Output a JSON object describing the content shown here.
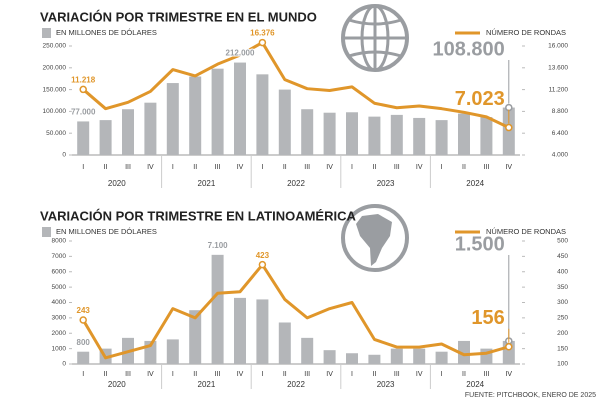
{
  "chart_data": [
    {
      "type": "combo",
      "title": "VARIACIÓN POR TRIMESTRE EN EL MUNDO",
      "categories": [
        "I",
        "II",
        "III",
        "IV",
        "I",
        "II",
        "III",
        "IV",
        "I",
        "II",
        "III",
        "IV",
        "I",
        "II",
        "III",
        "IV",
        "I",
        "II",
        "III",
        "IV"
      ],
      "years": [
        "2020",
        "2021",
        "2022",
        "2023",
        "2024"
      ],
      "series": [
        {
          "name": "EN MILLONES DE DÓLARES",
          "type": "bar",
          "color": "#b4b6b9",
          "values": [
            77000,
            80000,
            105000,
            120000,
            165000,
            180000,
            198000,
            212000,
            185000,
            150000,
            105000,
            97000,
            98000,
            88000,
            92000,
            85000,
            80000,
            95000,
            87000,
            108800
          ],
          "value_labels": [
            "77.000",
            null,
            null,
            null,
            null,
            null,
            null,
            "212.000",
            null,
            null,
            null,
            null,
            null,
            null,
            null,
            null,
            null,
            null,
            null,
            "108.800"
          ]
        },
        {
          "name": "NÚMERO DE RONDAS",
          "type": "line",
          "axis": "y2",
          "color": "#e0962a",
          "values": [
            11218,
            9100,
            9800,
            11000,
            13400,
            12700,
            14000,
            15000,
            16376,
            12300,
            11300,
            11100,
            11500,
            9700,
            9200,
            9400,
            9100,
            8700,
            8200,
            7023
          ],
          "value_labels": [
            "11.218",
            null,
            null,
            null,
            null,
            null,
            null,
            null,
            "16.376",
            null,
            null,
            null,
            null,
            null,
            null,
            null,
            null,
            null,
            null,
            "7.023"
          ]
        }
      ],
      "ylim": [
        0,
        250000
      ],
      "yticks": [
        0,
        {
          "value": 50000,
          "label": "50.000"
        },
        {
          "value": 100000,
          "label": "100.000"
        },
        {
          "value": 150000,
          "label": "150.000"
        },
        {
          "value": 200000,
          "label": "200.000"
        },
        {
          "value": 250000,
          "label": "250.000"
        }
      ],
      "y2lim": [
        4000,
        16000
      ],
      "y2ticks": [
        {
          "value": 4000,
          "label": "4.000"
        },
        {
          "value": 6400,
          "label": "6.400"
        },
        {
          "value": 8800,
          "label": "8.800"
        },
        {
          "value": 11200,
          "label": "11.200"
        },
        {
          "value": 13600,
          "label": "13.600"
        },
        {
          "value": 16000,
          "label": "16.000"
        }
      ]
    },
    {
      "type": "combo",
      "title": "VARIACIÓN POR TRIMESTRE EN LATINOAMÉRICA",
      "categories": [
        "I",
        "II",
        "III",
        "IV",
        "I",
        "II",
        "III",
        "IV",
        "I",
        "II",
        "III",
        "IV",
        "I",
        "II",
        "III",
        "IV",
        "I",
        "II",
        "III",
        "IV"
      ],
      "years": [
        "2020",
        "2021",
        "2022",
        "2023",
        "2024"
      ],
      "series": [
        {
          "name": "EN MILLONES DE DÓLARES",
          "type": "bar",
          "color": "#b4b6b9",
          "values": [
            800,
            1000,
            1700,
            1500,
            1600,
            3500,
            7100,
            4300,
            4200,
            2700,
            1700,
            900,
            700,
            600,
            1000,
            1000,
            800,
            1500,
            1000,
            1500
          ],
          "value_labels": [
            "800",
            null,
            null,
            null,
            null,
            null,
            "7.100",
            null,
            null,
            null,
            null,
            null,
            null,
            null,
            null,
            null,
            null,
            null,
            null,
            "1.500"
          ]
        },
        {
          "name": "NÚMERO DE RONDAS",
          "type": "line",
          "axis": "y2",
          "color": "#e0962a",
          "values": [
            243,
            120,
            140,
            160,
            280,
            250,
            330,
            335,
            423,
            310,
            250,
            280,
            300,
            180,
            155,
            155,
            165,
            130,
            135,
            156
          ],
          "value_labels": [
            "243",
            null,
            null,
            null,
            null,
            null,
            null,
            null,
            "423",
            null,
            null,
            null,
            null,
            null,
            null,
            null,
            null,
            null,
            null,
            "156"
          ]
        }
      ],
      "ylim": [
        0,
        8000
      ],
      "yticks": [
        0,
        1000,
        2000,
        3000,
        4000,
        5000,
        6000,
        7000,
        8000
      ],
      "y2lim": [
        100,
        500
      ],
      "y2ticks": [
        100,
        150,
        200,
        250,
        300,
        350,
        400,
        450,
        500
      ]
    }
  ],
  "source": "FUENTE: PITCHBOOK, ENERO DE 2025"
}
